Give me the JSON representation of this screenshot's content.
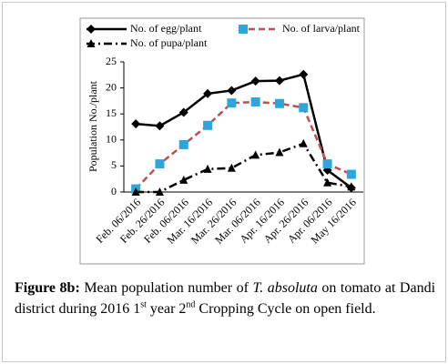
{
  "chart_data": {
    "type": "line",
    "ylabel": "Population No./plant",
    "categories": [
      "Feb. 06/2016",
      "Feb. 26/2016",
      "Feb. 06/2016",
      "Mar. 16/2016",
      "Mar. 26/2016",
      "Mar. 06/2016",
      "Apr. 16/2016",
      "Apr. 26/2016",
      "Apr. 06/2016",
      "May 16/2016"
    ],
    "series": [
      {
        "name": "No. of egg/plant",
        "color": "#000000",
        "marker_color": "#000000",
        "marker": "diamond",
        "dash": "solid",
        "values": [
          13.1,
          12.7,
          15.3,
          18.9,
          19.5,
          21.3,
          21.4,
          22.6,
          4.2,
          0.8
        ]
      },
      {
        "name": "No. of larva/plant",
        "color": "#c0504d",
        "marker_color": "#2ea6dc",
        "marker": "square",
        "dash": "dashed",
        "values": [
          0.6,
          5.4,
          9.1,
          12.8,
          17.1,
          17.3,
          17.0,
          16.2,
          5.4,
          3.4
        ]
      },
      {
        "name": "No. of pupa/plant",
        "color": "#000000",
        "marker_color": "#000000",
        "marker": "triangle",
        "dash": "dashdot",
        "values": [
          0,
          0,
          2.3,
          4.4,
          4.6,
          7.1,
          7.6,
          9.3,
          1.8,
          1.0
        ]
      }
    ],
    "ylim": [
      0,
      25
    ],
    "yticks": [
      0,
      5,
      10,
      15,
      20,
      25
    ],
    "grid": false
  },
  "caption": {
    "label": "Figure 8b:",
    "parts": [
      "Mean population number of",
      "T. absoluta",
      "on tomato at Dandi district during 2016 1",
      "st",
      "year 2",
      "nd",
      "Cropping Cycle on open field."
    ]
  }
}
